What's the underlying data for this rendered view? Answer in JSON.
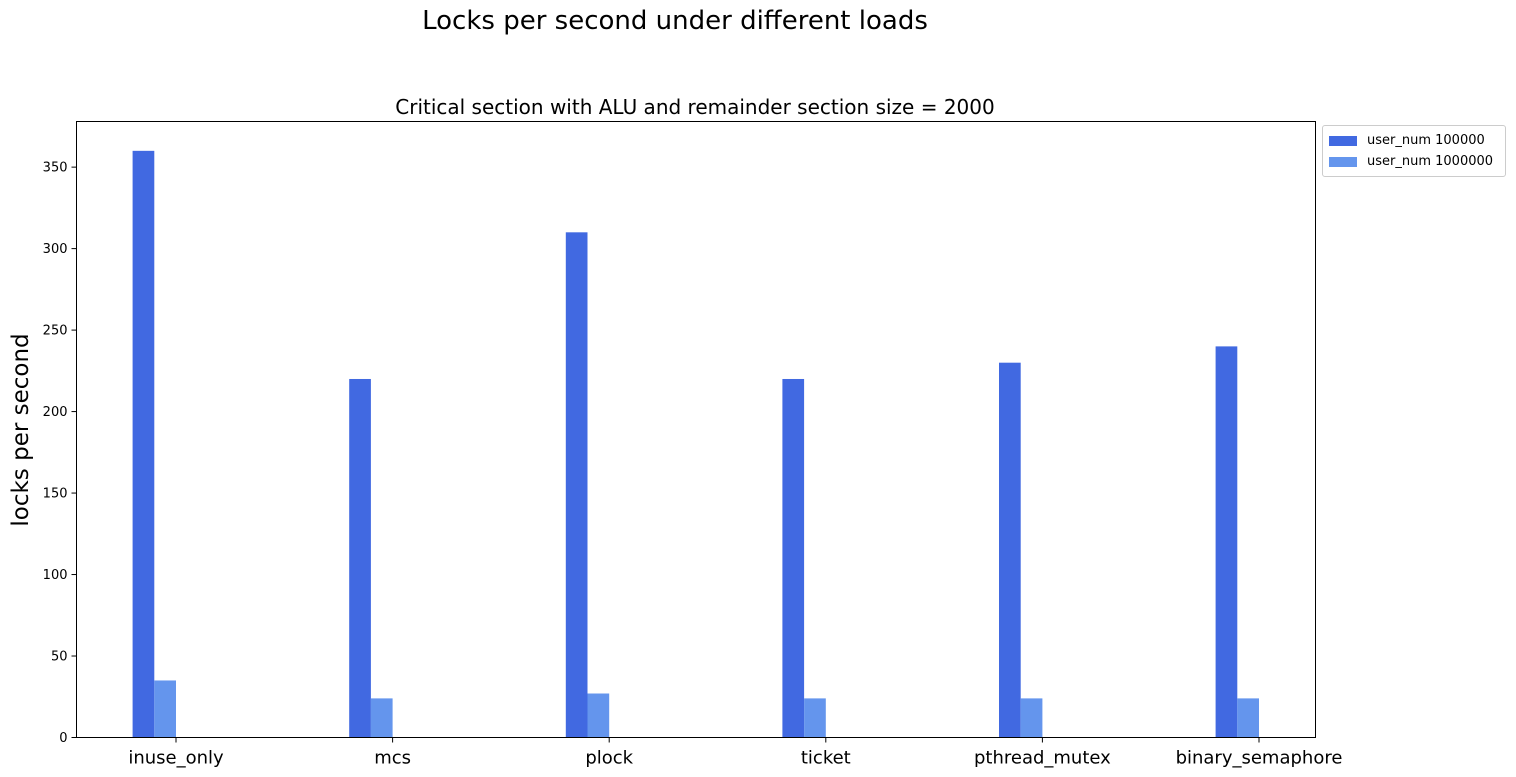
{
  "suptitle": "Locks per second under different loads",
  "chart_data": {
    "type": "bar",
    "title": "Critical section with ALU and remainder section size = 2000",
    "xlabel": "",
    "ylabel": "locks per second",
    "categories": [
      "inuse_only",
      "mcs",
      "plock",
      "ticket",
      "pthread_mutex",
      "binary_semaphore"
    ],
    "series": [
      {
        "name": "user_num 100000",
        "color": "#4169e1",
        "values": [
          360,
          220,
          310,
          220,
          230,
          240
        ]
      },
      {
        "name": "user_num 1000000",
        "color": "#6495ed",
        "values": [
          35,
          24,
          27,
          24,
          24,
          24
        ]
      }
    ],
    "ylim": [
      0,
      378
    ],
    "yticks": [
      0,
      50,
      100,
      150,
      200,
      250,
      300,
      350
    ],
    "grid": false,
    "legend_position": "outside top-right"
  }
}
